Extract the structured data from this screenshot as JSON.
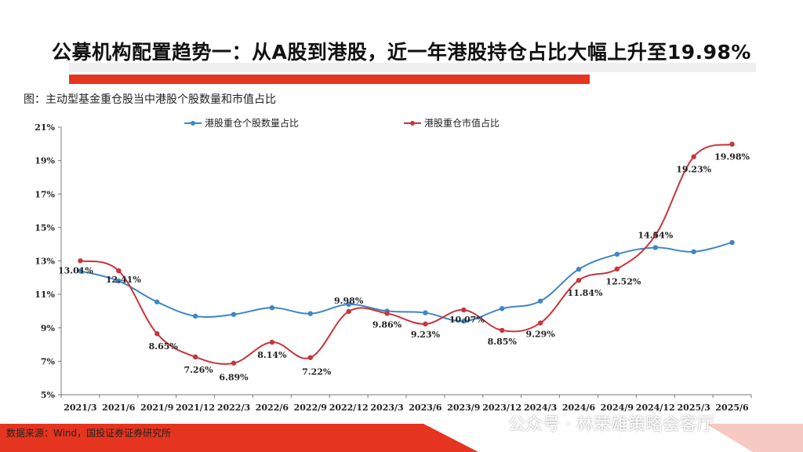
{
  "header": {
    "title": "公募机构配置趋势一：从A股到港股，近一年港股持仓占比大幅上升至19.98%",
    "subtitle": "图：主动型基金重仓股当中港股个股数量和市值占比"
  },
  "footer": {
    "source": "数据来源：Wind，国投证券证券研究所",
    "watermark": "公众号 · 林荣雄策略会客厅"
  },
  "colors": {
    "accent_red": "#e5341f",
    "series_blue": "#3e86c6",
    "series_red": "#c8353b"
  },
  "chart_data": {
    "type": "line",
    "categories": [
      "2021/3",
      "2021/6",
      "2021/9",
      "2021/12",
      "2022/3",
      "2022/6",
      "2022/9",
      "2022/12",
      "2023/3",
      "2023/6",
      "2023/9",
      "2023/12",
      "2024/3",
      "2024/6",
      "2024/9",
      "2024/12",
      "2025/3",
      "2025/6"
    ],
    "ylim": [
      5,
      21
    ],
    "yticks": [
      "5%",
      "7%",
      "9%",
      "11%",
      "13%",
      "15%",
      "17%",
      "19%",
      "21%"
    ],
    "ytick_values": [
      5,
      7,
      9,
      11,
      13,
      15,
      17,
      19,
      21
    ],
    "legend_position": "top",
    "grid": false,
    "series": [
      {
        "name": "港股重仓个股数量占比",
        "color": "#3e86c6",
        "values": [
          12.4,
          11.8,
          10.55,
          9.7,
          9.8,
          10.2,
          9.85,
          10.4,
          10.0,
          9.9,
          9.4,
          10.15,
          10.6,
          12.5,
          13.4,
          13.8,
          13.55,
          14.1
        ]
      },
      {
        "name": "港股重仓市值占比",
        "color": "#c8353b",
        "values": [
          13.01,
          12.41,
          8.65,
          7.26,
          6.89,
          8.14,
          7.22,
          9.98,
          9.86,
          9.23,
          10.07,
          8.85,
          9.29,
          11.84,
          12.52,
          14.54,
          19.23,
          19.98
        ],
        "labels": [
          "13.01%",
          "12.41%",
          "8.65%",
          "7.26%",
          "6.89%",
          "8.14%",
          "7.22%",
          "9.98%",
          "9.86%",
          "9.23%",
          "10.07%",
          "8.85%",
          "9.29%",
          "11.84%",
          "12.52%",
          "14.54%",
          "19.23%",
          "19.98%"
        ]
      }
    ]
  }
}
